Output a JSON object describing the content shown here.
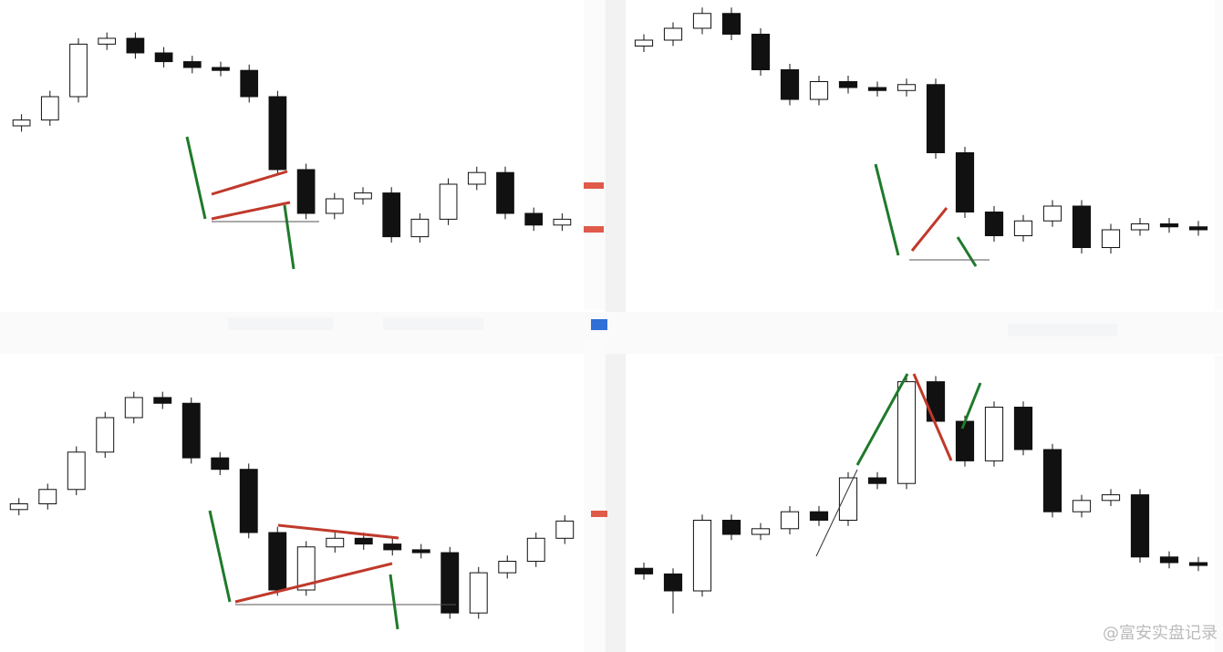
{
  "chart_data": [
    {
      "type": "candlestick",
      "ylim": [
        0,
        100
      ],
      "open": [
        60,
        62,
        70,
        88,
        90,
        85,
        82,
        80,
        79,
        70,
        45,
        30,
        35,
        37,
        22,
        28,
        40,
        44,
        30,
        26
      ],
      "high": [
        64,
        72,
        90,
        92,
        92,
        87,
        84,
        82,
        81,
        72,
        47,
        37,
        39,
        39,
        30,
        42,
        46,
        46,
        32,
        30
      ],
      "low": [
        58,
        60,
        68,
        86,
        83,
        80,
        78,
        77,
        68,
        43,
        28,
        28,
        33,
        20,
        20,
        26,
        38,
        28,
        24,
        24
      ],
      "close": [
        62,
        70,
        88,
        90,
        85,
        82,
        80,
        79,
        70,
        45,
        30,
        35,
        37,
        22,
        28,
        40,
        44,
        30,
        26,
        28
      ]
    },
    {
      "type": "candlestick",
      "ylim": [
        0,
        100
      ],
      "open": [
        86,
        88,
        92,
        97,
        90,
        78,
        68,
        74,
        72,
        71,
        73,
        50,
        30,
        22,
        27,
        32,
        18,
        24,
        26,
        25
      ],
      "high": [
        90,
        94,
        99,
        99,
        92,
        80,
        76,
        76,
        74,
        75,
        75,
        52,
        32,
        29,
        34,
        34,
        26,
        28,
        28,
        27
      ],
      "low": [
        84,
        86,
        90,
        88,
        76,
        66,
        66,
        70,
        69,
        69,
        48,
        28,
        20,
        20,
        25,
        16,
        16,
        22,
        23,
        22
      ],
      "close": [
        88,
        92,
        97,
        90,
        78,
        68,
        74,
        72,
        71,
        73,
        50,
        30,
        22,
        27,
        32,
        18,
        24,
        26,
        25,
        24
      ]
    },
    {
      "type": "candlestick",
      "ylim": [
        0,
        100
      ],
      "open": [
        48,
        50,
        55,
        68,
        80,
        87,
        85,
        66,
        62,
        40,
        20,
        35,
        38,
        36,
        34,
        33,
        12,
        26,
        30,
        38
      ],
      "high": [
        52,
        57,
        70,
        82,
        89,
        89,
        87,
        68,
        64,
        42,
        37,
        40,
        40,
        38,
        36,
        35,
        28,
        32,
        40,
        46
      ],
      "low": [
        46,
        48,
        53,
        66,
        78,
        83,
        64,
        60,
        38,
        18,
        18,
        33,
        34,
        32,
        31,
        10,
        10,
        24,
        28,
        36
      ],
      "close": [
        50,
        55,
        68,
        80,
        87,
        85,
        66,
        62,
        40,
        20,
        35,
        38,
        36,
        34,
        33,
        12,
        26,
        30,
        38,
        44
      ]
    },
    {
      "type": "candlestick",
      "ylim": [
        0,
        100
      ],
      "open": [
        28,
        26,
        20,
        45,
        40,
        42,
        48,
        45,
        60,
        58,
        94,
        80,
        66,
        85,
        70,
        48,
        52,
        54,
        32,
        30
      ],
      "high": [
        30,
        28,
        47,
        47,
        44,
        50,
        50,
        62,
        62,
        96,
        96,
        82,
        87,
        87,
        72,
        54,
        56,
        56,
        34,
        32
      ],
      "low": [
        24,
        12,
        18,
        38,
        38,
        40,
        43,
        43,
        56,
        56,
        78,
        64,
        64,
        68,
        46,
        46,
        50,
        30,
        28,
        27
      ],
      "close": [
        26,
        20,
        45,
        40,
        42,
        48,
        45,
        60,
        58,
        94,
        80,
        66,
        85,
        70,
        48,
        52,
        54,
        32,
        30,
        29
      ]
    }
  ],
  "watermark": "@富安实盘记录"
}
